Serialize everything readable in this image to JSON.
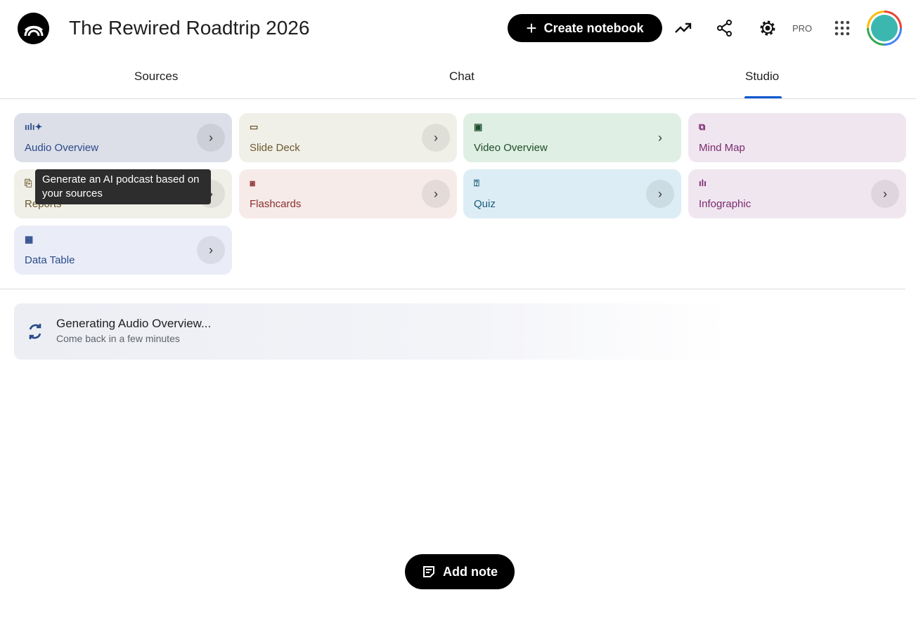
{
  "header": {
    "title": "The Rewired Roadtrip 2026",
    "create_label": "Create notebook",
    "pro_label": "PRO",
    "icons": [
      "notebooklm-logo",
      "analytics-icon",
      "share-icon",
      "settings-icon",
      "apps-grid-icon",
      "avatar"
    ]
  },
  "tabs": [
    {
      "label": "Sources"
    },
    {
      "label": "Chat"
    },
    {
      "label": "Studio",
      "active": true
    }
  ],
  "studio": {
    "cards": [
      {
        "label": "Audio Overview",
        "icon": "audio-wave-icon",
        "bg": "#dcdfe8",
        "color": "#2b4a8a"
      },
      {
        "label": "Slide Deck",
        "icon": "slides-icon",
        "bg": "#f1f0e8",
        "color": "#6b5a30"
      },
      {
        "label": "Video Overview",
        "icon": "video-icon",
        "bg": "#e0efe3",
        "color": "#1e4d2b"
      },
      {
        "label": "Mind Map",
        "icon": "mind-map-icon",
        "bg": "#f0e6f0",
        "color": "#7a2a6e"
      },
      {
        "label": "Reports",
        "icon": "reports-icon",
        "bg": "#f1f0e8",
        "color": "#6b5a30"
      },
      {
        "label": "Flashcards",
        "icon": "flashcards-icon",
        "bg": "#f6ebe9",
        "color": "#8a2e2e"
      },
      {
        "label": "Quiz",
        "icon": "quiz-icon",
        "bg": "#dcedf5",
        "color": "#1d5a7a"
      },
      {
        "label": "Infographic",
        "icon": "infographic-icon",
        "bg": "#f0e6f0",
        "color": "#7a2a6e"
      },
      {
        "label": "Data Table",
        "icon": "table-icon",
        "bg": "#eaedf8",
        "color": "#2b4a8a"
      }
    ],
    "tooltip": "Generate an AI podcast based on your sources",
    "generating": {
      "title": "Generating Audio Overview...",
      "subtitle": "Come back in a few minutes"
    }
  },
  "add_note_label": "Add note"
}
